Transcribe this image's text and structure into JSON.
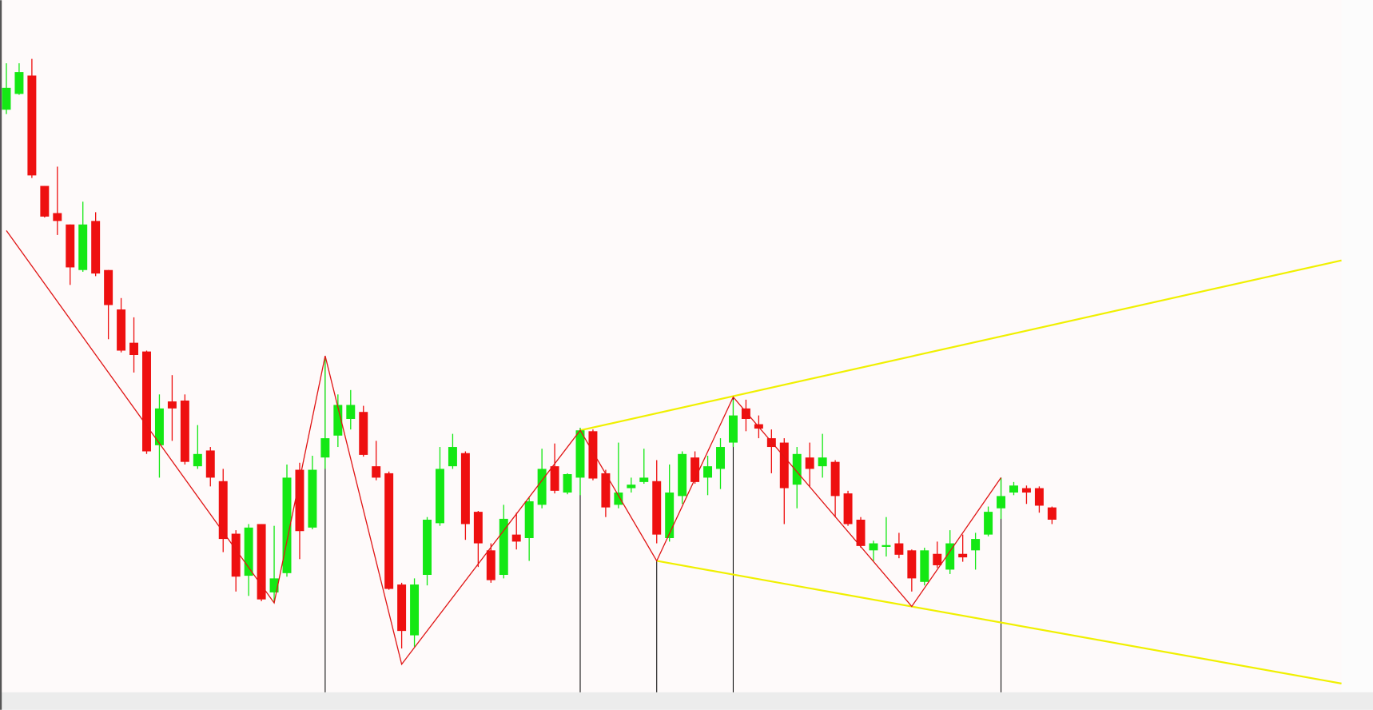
{
  "chart_data": {
    "type": "candlestick",
    "xlim": [
      -0.5,
      104.7
    ],
    "ylim": [
      0,
      810
    ],
    "up_color": "#14e814",
    "down_color": "#ee1010",
    "open": [
      685,
      703,
      724,
      598,
      567,
      554,
      502,
      558,
      502,
      457,
      419,
      409,
      302,
      352,
      353,
      278,
      296,
      261,
      201,
      153,
      212,
      134,
      156,
      274,
      208,
      288,
      313,
      332,
      340,
      278,
      270,
      143,
      85,
      154,
      213,
      278,
      293,
      226,
      182,
      154,
      200,
      196,
      234,
      278,
      248,
      265,
      318,
      270,
      234,
      253,
      260,
      261,
      196,
      244,
      288,
      265,
      275,
      305,
      344,
      326,
      310,
      305,
      257,
      288,
      278,
      283,
      247,
      217,
      182,
      186,
      190,
      182,
      146,
      178,
      160,
      178,
      182,
      200,
      230,
      248,
      253,
      253,
      231
    ],
    "high": [
      738,
      738,
      743,
      598,
      620,
      554,
      580,
      568,
      502,
      470,
      448,
      410,
      360,
      382,
      360,
      325,
      300,
      275,
      205,
      212,
      212,
      210,
      280,
      282,
      290,
      402,
      360,
      365,
      347,
      307,
      272,
      145,
      150,
      220,
      300,
      315,
      295,
      227,
      190,
      234,
      225,
      242,
      298,
      304,
      270,
      322,
      320,
      274,
      305,
      265,
      298,
      285,
      280,
      295,
      295,
      290,
      310,
      354,
      354,
      336,
      320,
      310,
      300,
      305,
      315,
      285,
      250,
      220,
      193,
      220,
      202,
      183,
      185,
      192,
      205,
      200,
      202,
      232,
      265,
      260,
      256,
      255,
      232
    ],
    "low": [
      680,
      702,
      607,
      562,
      542,
      485,
      500,
      495,
      423,
      408,
      385,
      292,
      265,
      307,
      280,
      275,
      255,
      180,
      135,
      130,
      124,
      122,
      152,
      172,
      206,
      275,
      300,
      320,
      289,
      262,
      137,
      70,
      72,
      142,
      210,
      275,
      194,
      163,
      145,
      150,
      183,
      170,
      230,
      247,
      246,
      245,
      262,
      220,
      230,
      248,
      258,
      190,
      192,
      235,
      258,
      245,
      252,
      300,
      318,
      310,
      270,
      212,
      230,
      254,
      265,
      220,
      210,
      185,
      170,
      175,
      173,
      135,
      142,
      162,
      155,
      169,
      160,
      198,
      218,
      245,
      235,
      225,
      212
    ],
    "close": [
      710,
      728,
      610,
      563,
      558,
      505,
      554,
      498,
      462,
      410,
      405,
      295,
      344,
      344,
      283,
      292,
      265,
      195,
      152,
      208,
      126,
      150,
      265,
      204,
      274,
      310,
      348,
      348,
      291,
      265,
      138,
      90,
      143,
      217,
      275,
      300,
      212,
      190,
      148,
      218,
      192,
      238,
      275,
      250,
      269,
      319,
      264,
      231,
      248,
      257,
      265,
      200,
      248,
      292,
      260,
      278,
      300,
      336,
      332,
      321,
      300,
      253,
      292,
      275,
      288,
      244,
      212,
      187,
      190,
      188,
      177,
      150,
      182,
      165,
      190,
      174,
      195,
      226,
      244,
      256,
      248,
      233,
      217
    ],
    "zigzag": {
      "color": "#e01515",
      "x": [
        0,
        21,
        25,
        31,
        45,
        51,
        57,
        71,
        78
      ],
      "values": [
        547,
        122,
        404,
        52,
        319,
        170,
        357,
        118,
        265
      ]
    },
    "trendlines": [
      {
        "color": "#f0f000",
        "x": [
          45,
          104.7
        ],
        "values": [
          319,
          513
        ]
      },
      {
        "color": "#f0f000",
        "x": [
          51,
          104.7
        ],
        "values": [
          170,
          30
        ]
      }
    ],
    "pivot_lines": {
      "color": "#111111",
      "x": [
        25,
        45,
        51,
        57,
        78
      ],
      "values": [
        404,
        319,
        170,
        357,
        265
      ]
    }
  }
}
